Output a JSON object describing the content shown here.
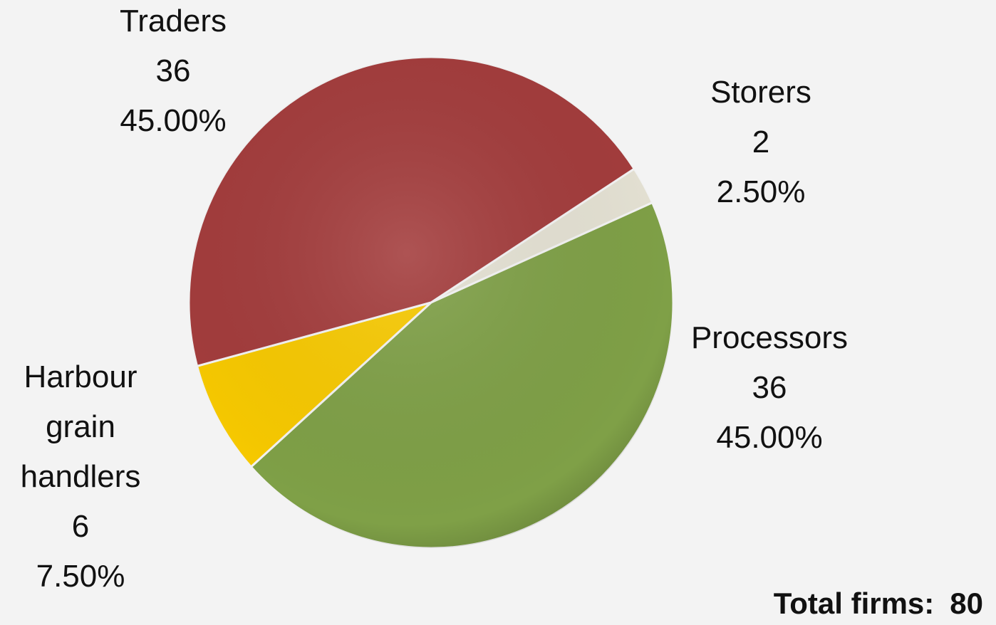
{
  "chart_data": {
    "type": "pie",
    "categories": [
      "Storers",
      "Processors",
      "Harbour grain handlers",
      "Traders"
    ],
    "values": [
      2,
      36,
      6,
      36
    ],
    "percent_labels": [
      "2.50%",
      "45.00%",
      "7.50%",
      "45.00%"
    ],
    "colors": [
      "#e4e1d3",
      "#7fa047",
      "#f7c900",
      "#a33c3c"
    ],
    "total_label": "Total firms:",
    "total": 80
  }
}
